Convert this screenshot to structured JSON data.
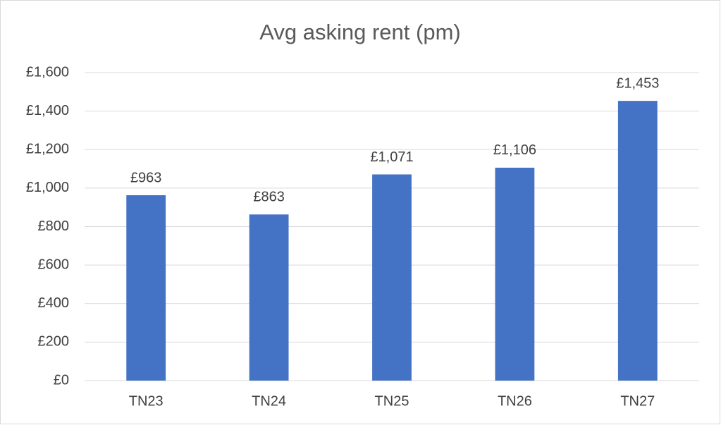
{
  "chart_data": {
    "type": "bar",
    "title": "Avg asking rent (pm)",
    "categories": [
      "TN23",
      "TN24",
      "TN25",
      "TN26",
      "TN27"
    ],
    "values": [
      963,
      863,
      1071,
      1106,
      1453
    ],
    "value_labels": [
      "£963",
      "£863",
      "£1,071",
      "£1,106",
      "£1,453"
    ],
    "color": "#4472c4",
    "ylim": [
      0,
      1600
    ],
    "yticks": [
      {
        "value": 0,
        "label": "£0"
      },
      {
        "value": 200,
        "label": "£200"
      },
      {
        "value": 400,
        "label": "£400"
      },
      {
        "value": 600,
        "label": "£600"
      },
      {
        "value": 800,
        "label": "£800"
      },
      {
        "value": 1000,
        "label": "£1,000"
      },
      {
        "value": 1200,
        "label": "£1,200"
      },
      {
        "value": 1400,
        "label": "£1,400"
      },
      {
        "value": 1600,
        "label": "£1,600"
      }
    ],
    "grid": true
  }
}
